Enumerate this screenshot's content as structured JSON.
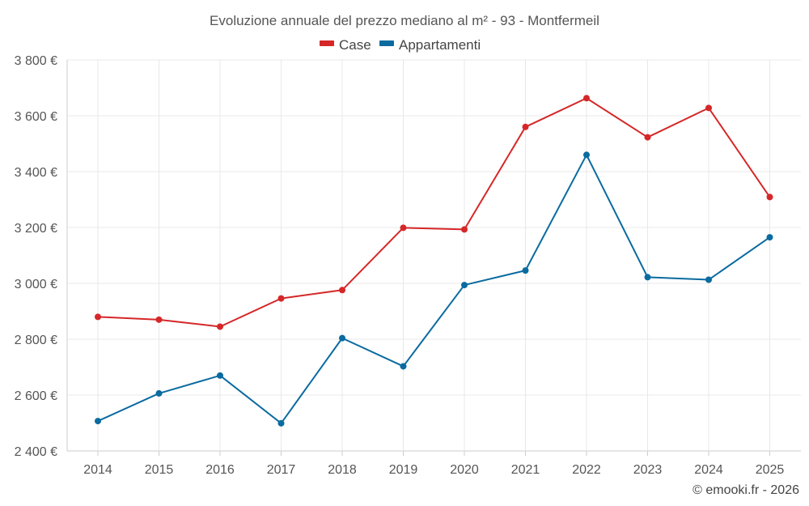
{
  "chart_data": {
    "type": "line",
    "title": "Evoluzione annuale del prezzo mediano al m² - 93 - Montfermeil",
    "categories": [
      "2014",
      "2015",
      "2016",
      "2017",
      "2018",
      "2019",
      "2020",
      "2021",
      "2022",
      "2023",
      "2024",
      "2025"
    ],
    "series": [
      {
        "name": "Case",
        "color": "#d62728",
        "values": [
          2880,
          2870,
          2845,
          2946,
          2976,
          3199,
          3193,
          3560,
          3663,
          3523,
          3628,
          3309
        ]
      },
      {
        "name": "Appartamenti",
        "color": "#0a6ba0",
        "values": [
          2507,
          2606,
          2670,
          2499,
          2804,
          2703,
          2994,
          3046,
          3460,
          3022,
          3013,
          3165
        ]
      }
    ],
    "ylim": [
      2400,
      3800
    ],
    "yticks": [
      2400,
      2600,
      2800,
      3000,
      3200,
      3400,
      3600,
      3800
    ],
    "ytick_labels": [
      "2 400 €",
      "2 600 €",
      "2 800 €",
      "3 000 €",
      "3 200 €",
      "3 400 €",
      "3 600 €",
      "3 800 €"
    ],
    "xlabel": "",
    "ylabel": "",
    "legend_position": "top-center",
    "grid": true
  },
  "footer": {
    "credit": "© emooki.fr - 2026"
  }
}
